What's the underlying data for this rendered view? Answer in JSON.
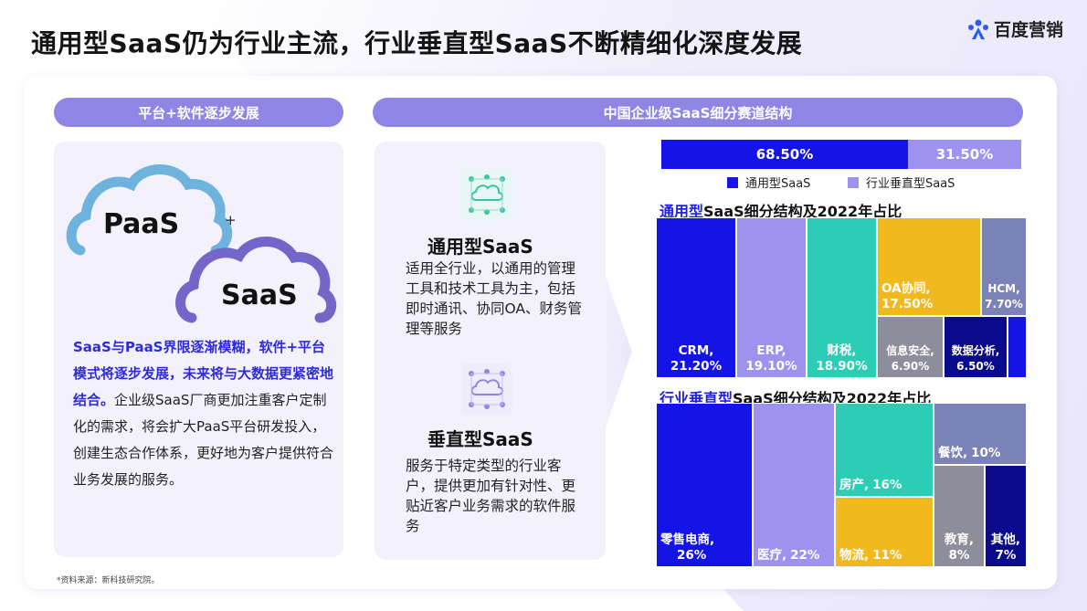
{
  "title": "通用型SaaS仍为行业主流，行业垂直型SaaS不断精细化深度发展",
  "logo": {
    "text": "百度营销"
  },
  "left_header": "平台+软件逐步发展",
  "right_header": "中国企业级SaaS细分赛道结构",
  "clouds": {
    "top": "PaaS",
    "plus": "+",
    "bottom": "SaaS"
  },
  "intro": {
    "highlight": "SaaS与PaaS界限逐渐模糊，软件+平台模式将逐步发展，未来将与大数据更紧密地结合。",
    "body": "企业级SaaS厂商更加注重客户定制化的需求，将会扩大PaaS平台研发投入，创建生态合作体系，更好地为客户提供符合业务发展的服务。"
  },
  "types": [
    {
      "title": "通用型SaaS",
      "desc": "适用全行业，以通用的管理工具和技术工具为主，包括即时通讯、协同OA、财务管理等服务"
    },
    {
      "title": "垂直型SaaS",
      "desc": "服务于特定类型的行业客户，提供更加有针对性、更贴近客户业务需求的软件服务"
    }
  ],
  "split": {
    "general_label": "68.50%",
    "general_value": 68.5,
    "vertical_label": "31.50%",
    "vertical_value": 31.5,
    "legend_general": "通用型SaaS",
    "legend_vertical": "行业垂直型SaaS"
  },
  "general_title": {
    "prefix": "通用型",
    "suffix": "SaaS细分结构及2022年占比"
  },
  "general_tiles": [
    {
      "name": "CRM,",
      "value": "21.20%"
    },
    {
      "name": "ERP,",
      "value": "19.10%"
    },
    {
      "name": "财税,",
      "value": "18.90%"
    },
    {
      "name": "OA协同,",
      "value": "17.50%"
    },
    {
      "name": "HCM,",
      "value": "7.70%"
    },
    {
      "name": "信息安全,",
      "value": "6.90%"
    },
    {
      "name": "数据分析,",
      "value": "6.50%"
    }
  ],
  "vertical_title": {
    "prefix": "行业垂直型",
    "suffix": "SaaS细分结构及2022年占比"
  },
  "vertical_tiles": [
    {
      "name": "零售电商,",
      "value": "26%"
    },
    {
      "name": "医疗,",
      "value": "22%"
    },
    {
      "name": "房产,",
      "value": "16%"
    },
    {
      "name": "物流,",
      "value": "11%"
    },
    {
      "name": "餐饮,",
      "value": "10%"
    },
    {
      "name": "教育,",
      "value": "8%"
    },
    {
      "name": "其他,",
      "value": "7%"
    }
  ],
  "source": "*资料来源：新科技研究院。",
  "colors": {
    "accent": "#8f85e6",
    "general_blue": "#1414e6",
    "vertical_lavender": "#9d93ee",
    "teal": "#2ccdb5",
    "yellow": "#f2b91e",
    "gray": "#8d8d9c",
    "slate": "#7b82b8",
    "navy": "#0a0a8c",
    "highlight_text": "#2f2bd9"
  }
}
